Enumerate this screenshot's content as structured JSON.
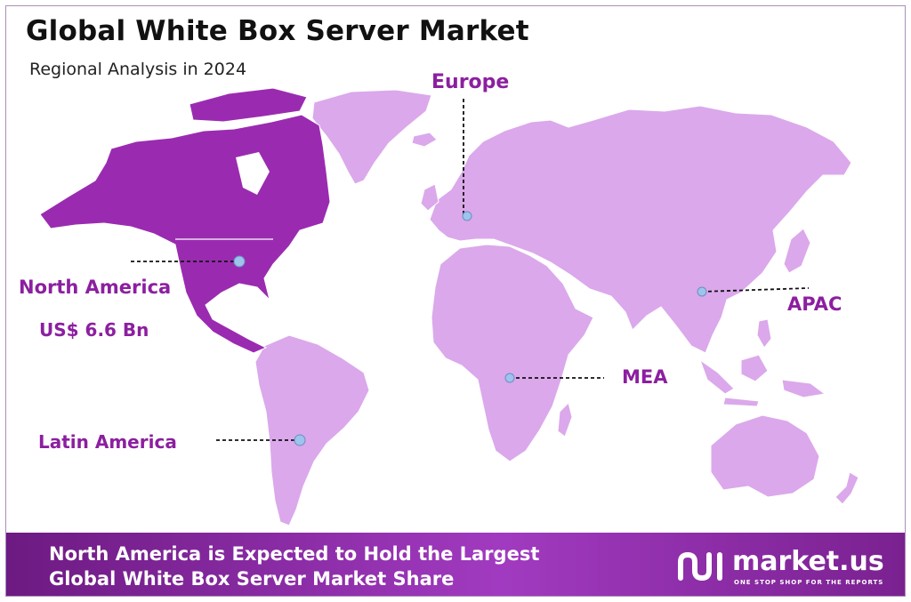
{
  "header": {
    "title": "Global White Box Server Market",
    "subtitle": "Regional Analysis in 2024"
  },
  "colors": {
    "highlight_region": "#9a2bb0",
    "other_regions": "#dba8eb",
    "label_text": "#8c1fa0",
    "marker": "#9ec3ec",
    "banner": "#8a2aa8"
  },
  "regions": {
    "europe": {
      "label": "Europe"
    },
    "north_america": {
      "label": "North America",
      "value": "US$ 6.6 Bn"
    },
    "apac": {
      "label": "APAC"
    },
    "mea": {
      "label": "MEA"
    },
    "latin_america": {
      "label": "Latin America"
    }
  },
  "footer": {
    "line1": "North America is Expected to Hold the Largest",
    "line2": "Global White Box Server Market Share",
    "brand": "market.us",
    "tagline": "ONE STOP SHOP FOR THE REPORTS"
  }
}
